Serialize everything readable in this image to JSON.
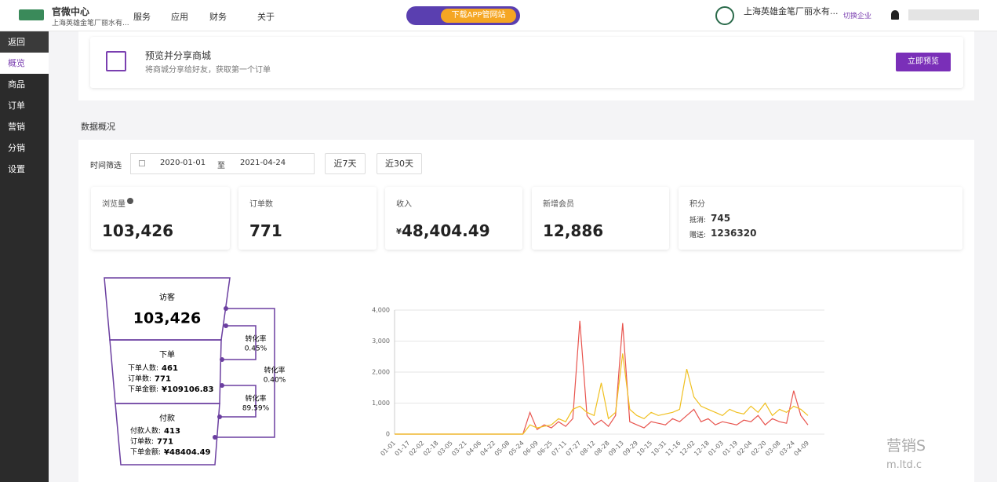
{
  "header": {
    "app_title": "官微中心",
    "app_subtitle": "上海英雄金笔厂丽水有...",
    "nav": [
      "服务",
      "应用",
      "财务",
      "关于"
    ],
    "banner": "下载APP管网站",
    "company": "上海英雄金笔厂丽水有...",
    "switch": "切换企业"
  },
  "sidebar": [
    "返回",
    "概览",
    "商品",
    "订单",
    "营销",
    "分销",
    "设置"
  ],
  "preview": {
    "title": "预览并分享商城",
    "description": "将商城分享给好友，获取第一个订单",
    "button": "立即预览"
  },
  "section_title": "数据概况",
  "filter": {
    "label": "时间筛选",
    "start": "2020-01-01",
    "separator": "至",
    "end": "2021-04-24",
    "buttons": [
      "近7天",
      "近30天"
    ]
  },
  "stats": [
    {
      "label": "浏览量",
      "value": "103,426"
    },
    {
      "label": "订单数",
      "value": "771"
    },
    {
      "label": "收入",
      "currency": "¥",
      "value": "48,404.49"
    },
    {
      "label": "新增会员",
      "value": "12,886"
    }
  ],
  "points": {
    "label": "积分",
    "rows": [
      {
        "label": "抵消:",
        "value": "745"
      },
      {
        "label": "赠送:",
        "value": "1236320"
      }
    ]
  },
  "funnel": {
    "stages": [
      {
        "label": "访客",
        "value": "103,426"
      },
      {
        "label": "下单",
        "rows": [
          {
            "label": "下单人数:",
            "value": "461"
          },
          {
            "label": "订单数:",
            "value": "771"
          },
          {
            "label": "下单金额:",
            "value": "¥109106.83"
          }
        ]
      },
      {
        "label": "付款",
        "rows": [
          {
            "label": "付款人数:",
            "value": "413"
          },
          {
            "label": "订单数:",
            "value": "771"
          },
          {
            "label": "下单金额:",
            "value": "¥48404.49"
          }
        ]
      }
    ],
    "rates": [
      {
        "label": "转化率",
        "value": "0.45%"
      },
      {
        "label": "转化率",
        "value": "89.59%"
      },
      {
        "label": "转化率",
        "value": "0.40%"
      }
    ]
  },
  "chart_data": {
    "type": "line",
    "categories": [
      "01-01",
      null,
      "01-17",
      null,
      "02-02",
      null,
      "02-18",
      null,
      "03-05",
      null,
      "03-21",
      null,
      "04-06",
      null,
      "04-22",
      null,
      "05-08",
      null,
      "05-24",
      null,
      "06-09",
      null,
      "06-25",
      null,
      "07-11",
      null,
      "07-27",
      null,
      "08-12",
      null,
      "08-28",
      null,
      "09-13",
      null,
      "09-29",
      null,
      "10-15",
      null,
      "10-31",
      null,
      "11-16",
      null,
      "12-02",
      null,
      "12-18",
      null,
      "01-03",
      null,
      "01-19",
      null,
      "02-04",
      null,
      "02-20",
      null,
      "03-08",
      null,
      "03-24",
      null,
      "04-09"
    ],
    "series": [
      {
        "color": "#e8544e",
        "values": [
          0,
          0,
          0,
          0,
          0,
          0,
          0,
          0,
          0,
          0,
          0,
          0,
          0,
          0,
          0,
          0,
          0,
          0,
          0,
          700,
          150,
          300,
          200,
          400,
          250,
          500,
          3650,
          600,
          300,
          450,
          250,
          600,
          3580,
          400,
          300,
          200,
          400,
          350,
          300,
          500,
          400,
          600,
          800,
          400,
          500,
          300,
          400,
          350,
          300,
          450,
          400,
          600,
          300,
          500,
          400,
          350,
          1400,
          600,
          300
        ]
      },
      {
        "color": "#f0c020",
        "values": [
          0,
          0,
          0,
          0,
          0,
          0,
          0,
          0,
          0,
          0,
          0,
          0,
          0,
          0,
          0,
          0,
          0,
          0,
          0,
          300,
          200,
          250,
          300,
          500,
          400,
          800,
          900,
          700,
          600,
          1650,
          500,
          700,
          2600,
          800,
          600,
          500,
          700,
          600,
          650,
          700,
          800,
          2100,
          1200,
          900,
          800,
          700,
          600,
          800,
          700,
          650,
          900,
          700,
          1000,
          600,
          800,
          700,
          900,
          800,
          600
        ]
      }
    ],
    "ylim": [
      0,
      4000
    ],
    "yticks": [
      0,
      {
        "value": 1000,
        "label": "1,000"
      },
      {
        "value": 2000,
        "label": "2,000"
      },
      {
        "value": 3000,
        "label": "3,000"
      },
      {
        "value": 4000,
        "label": "4,000"
      }
    ],
    "grid": true
  },
  "watermark": [
    "营销S",
    "m.ltd.c"
  ]
}
